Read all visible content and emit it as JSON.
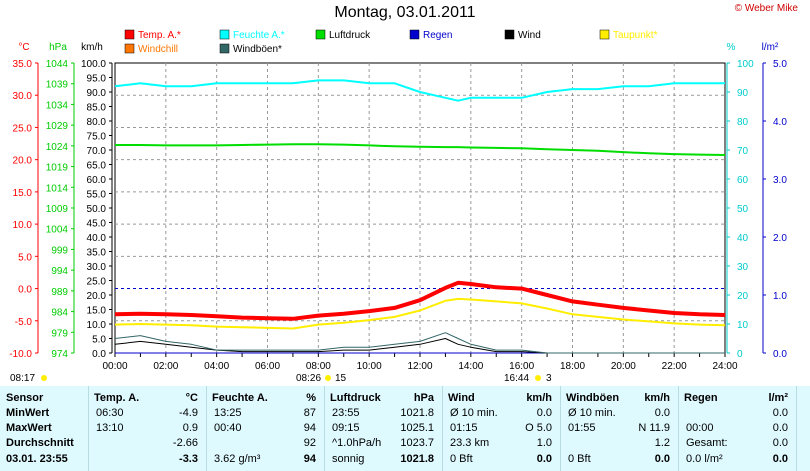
{
  "title": "Montag, 03.01.2011",
  "copyright": "© Weber Mike",
  "axis_headers": {
    "temp": "°C",
    "pressure": "hPa",
    "wind": "km/h",
    "humidity": "%",
    "rain": "l/m²"
  },
  "legend": [
    {
      "label": "Temp. A.*",
      "color": "#ff0000"
    },
    {
      "label": "Feuchte A.*",
      "color": "#00ffff"
    },
    {
      "label": "Luftdruck",
      "color": "#00dd00"
    },
    {
      "label": "Regen",
      "color": "#0000cc"
    },
    {
      "label": "Wind",
      "color": "#000000"
    },
    {
      "label": "Taupunkt*",
      "color": "#ffee00"
    },
    {
      "label": "Windchill",
      "color": "#ff7700"
    },
    {
      "label": "Windböen*",
      "color": "#336666"
    }
  ],
  "chart_data": {
    "type": "line",
    "title": "Montag, 03.01.2011",
    "x": [
      "00:00",
      "01:00",
      "02:00",
      "03:00",
      "04:00",
      "05:00",
      "06:00",
      "07:00",
      "08:00",
      "09:00",
      "10:00",
      "11:00",
      "12:00",
      "13:00",
      "13:30",
      "14:00",
      "15:00",
      "16:00",
      "17:00",
      "18:00",
      "19:00",
      "20:00",
      "21:00",
      "22:00",
      "23:00",
      "24:00"
    ],
    "x_ticks": [
      "00:00",
      "02:00",
      "04:00",
      "06:00",
      "08:00",
      "10:00",
      "12:00",
      "14:00",
      "16:00",
      "18:00",
      "20:00",
      "22:00",
      "24:00"
    ],
    "y_axes": {
      "temp_c": {
        "ticks": [
          "35.0",
          "30.0",
          "25.0",
          "20.0",
          "15.0",
          "10.0",
          "5.0",
          "0.0",
          "-5.0",
          "-10.0"
        ],
        "range": [
          -10,
          35
        ]
      },
      "pressure_hpa": {
        "ticks": [
          "1044",
          "1039",
          "1034",
          "1029",
          "1024",
          "1019",
          "1014",
          "1009",
          "1004",
          "999",
          "994",
          "989",
          "984",
          "979",
          "974"
        ],
        "range": [
          974,
          1044
        ]
      },
      "wind_kmh": {
        "ticks": [
          "100.0",
          "95.0",
          "90.0",
          "85.0",
          "80.0",
          "75.0",
          "70.0",
          "65.0",
          "60.0",
          "55.0",
          "50.0",
          "45.0",
          "40.0",
          "35.0",
          "30.0",
          "25.0",
          "20.0",
          "15.0",
          "10.0",
          "5.0",
          "0.0"
        ],
        "range": [
          0,
          100
        ]
      },
      "humidity_pct": {
        "ticks": [
          "100",
          "90",
          "80",
          "70",
          "60",
          "50",
          "40",
          "30",
          "20",
          "10",
          "0"
        ],
        "range": [
          0,
          100
        ]
      },
      "rain_lm2": {
        "ticks": [
          "5.0",
          "4.0",
          "3.0",
          "2.0",
          "1.0",
          "0.0"
        ],
        "range": [
          0,
          5
        ]
      }
    },
    "series": [
      {
        "name": "Temp. A.*",
        "axis": "temp_c",
        "values": [
          -4.0,
          -3.9,
          -4.0,
          -4.1,
          -4.3,
          -4.5,
          -4.6,
          -4.7,
          -4.2,
          -3.9,
          -3.5,
          -3.0,
          -1.8,
          0.1,
          0.9,
          0.7,
          0.2,
          0.0,
          -1.0,
          -2.0,
          -2.5,
          -3.0,
          -3.4,
          -3.8,
          -4.0,
          -4.1
        ]
      },
      {
        "name": "Feuchte A.*",
        "axis": "humidity_pct",
        "values": [
          92,
          93,
          92,
          92,
          93,
          93,
          93,
          93,
          94,
          94,
          93,
          93,
          90,
          88,
          87,
          88,
          88,
          88,
          90,
          91,
          91,
          92,
          92,
          93,
          93,
          93
        ]
      },
      {
        "name": "Luftdruck",
        "axis": "pressure_hpa",
        "values": [
          1024.2,
          1024.2,
          1024.1,
          1024.1,
          1024.1,
          1024.2,
          1024.3,
          1024.4,
          1024.4,
          1024.3,
          1024.1,
          1023.9,
          1023.8,
          1023.7,
          1023.7,
          1023.6,
          1023.5,
          1023.4,
          1023.2,
          1023.0,
          1022.8,
          1022.5,
          1022.2,
          1022.0,
          1021.9,
          1021.8
        ]
      },
      {
        "name": "Taupunkt*",
        "axis": "temp_c",
        "values": [
          -5.6,
          -5.5,
          -5.6,
          -5.7,
          -5.9,
          -6.0,
          -6.1,
          -6.2,
          -5.6,
          -5.3,
          -4.9,
          -4.4,
          -3.4,
          -1.9,
          -1.6,
          -1.7,
          -2.0,
          -2.3,
          -3.1,
          -4.0,
          -4.4,
          -4.8,
          -5.1,
          -5.4,
          -5.6,
          -5.7
        ]
      },
      {
        "name": "Wind",
        "axis": "wind_kmh",
        "values": [
          3,
          4,
          3,
          2,
          1,
          0.5,
          0.5,
          0.5,
          0.5,
          1,
          1,
          2,
          3,
          5,
          3,
          2,
          0.5,
          0.5,
          0,
          0,
          0,
          0,
          0,
          0,
          0,
          0
        ]
      },
      {
        "name": "Regen",
        "axis": "rain_lm2",
        "values": [
          0,
          0,
          0,
          0,
          0,
          0,
          0,
          0,
          0,
          0,
          0,
          0,
          0,
          0,
          0,
          0,
          0,
          0,
          0,
          0,
          0,
          0,
          0,
          0,
          0,
          0
        ]
      },
      {
        "name": "Windböen*",
        "axis": "wind_kmh",
        "values": [
          5,
          6,
          4,
          3,
          1,
          1,
          1,
          1,
          1,
          2,
          2,
          3,
          4,
          7,
          5,
          3,
          1,
          1,
          0,
          0,
          0,
          0,
          0,
          0,
          0,
          0
        ]
      },
      {
        "name": "Windchill",
        "axis": "temp_c",
        "values": [
          -4.0,
          -3.9,
          -4.0,
          -4.1,
          -4.3,
          -4.5,
          -4.6,
          -4.7,
          -4.2,
          -3.9,
          -3.5,
          -3.0,
          -1.8,
          0.1,
          0.9,
          0.7,
          0.2,
          0.0,
          -1.0,
          -2.0,
          -2.5,
          -3.0,
          -3.4,
          -3.8,
          -4.0,
          -4.1
        ]
      }
    ],
    "reference_line_temp_c": 0,
    "grid": true,
    "annotations": [
      "08:17",
      "08:26",
      "15",
      "16:44",
      "3"
    ]
  },
  "stats": {
    "sensor": {
      "title": "Sensor",
      "rows": [
        "MinWert",
        "MaxWert",
        "Durchschnitt",
        "03.01. 23:55"
      ]
    },
    "temp": {
      "title": "Temp. A.",
      "unit": "°C",
      "rows": [
        [
          "06:30",
          "-4.9"
        ],
        [
          "13:10",
          "0.9"
        ],
        [
          "",
          "-2.66"
        ],
        [
          "",
          "-3.3"
        ]
      ]
    },
    "humidity": {
      "title": "Feuchte A.",
      "unit": "%",
      "rows": [
        [
          "13:25",
          "87"
        ],
        [
          "00:40",
          "94"
        ],
        [
          "",
          "92"
        ],
        [
          "3.62 g/m³",
          "94"
        ]
      ]
    },
    "pressure": {
      "title": "Luftdruck",
      "unit": "hPa",
      "rows": [
        [
          "23:55",
          "1021.8"
        ],
        [
          "09:15",
          "1025.1"
        ],
        [
          "^1.0hPa/h",
          "1023.7"
        ],
        [
          "sonnig",
          "1021.8"
        ]
      ]
    },
    "wind": {
      "title": "Wind",
      "unit": "km/h",
      "rows": [
        [
          "Ø 10 min.",
          "0.0"
        ],
        [
          "01:15",
          "O 5.0"
        ],
        [
          "23.3 km",
          "1.0"
        ],
        [
          "0 Bft",
          "0.0"
        ]
      ]
    },
    "gust": {
      "title": "Windböen",
      "unit": "km/h",
      "rows": [
        [
          "Ø 10 min.",
          "0.0"
        ],
        [
          "01:55",
          "N 11.9"
        ],
        [
          "",
          "1.2"
        ],
        [
          "0 Bft",
          "0.0"
        ]
      ]
    },
    "rain": {
      "title": "Regen",
      "unit": "l/m²",
      "rows": [
        [
          "",
          "0.0"
        ],
        [
          "00:00",
          "0.0"
        ],
        [
          "Gesamt:",
          "0.0"
        ],
        [
          "0.0 l/m²",
          "0.0"
        ]
      ]
    }
  }
}
